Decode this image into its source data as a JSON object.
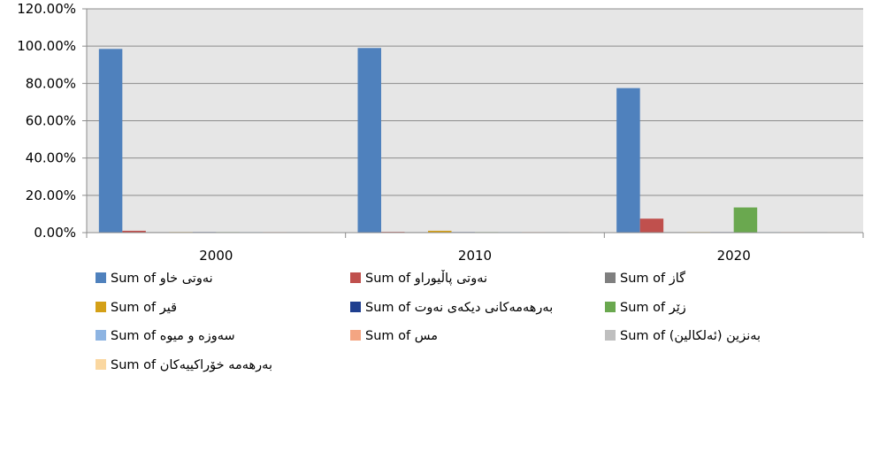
{
  "chart_data": {
    "type": "bar",
    "title": "",
    "xlabel": "",
    "ylabel": "",
    "categories": [
      "2000",
      "2010",
      "2020"
    ],
    "ylim": [
      0,
      120
    ],
    "ytick_values": [
      0,
      20,
      40,
      60,
      80,
      100,
      120
    ],
    "ytick_labels": [
      "0.00%",
      "20.00%",
      "40.00%",
      "60.00%",
      "80.00%",
      "100.00%",
      "120.00%"
    ],
    "grid": true,
    "legend_position": "bottom",
    "series": [
      {
        "name": "Sum of نەوتی خاو",
        "color": "#4F81BD",
        "values": [
          98.5,
          99.0,
          77.5
        ]
      },
      {
        "name": "Sum of نەوتی پاڵیوراو",
        "color": "#C0504D",
        "values": [
          1.0,
          0.4,
          7.5
        ]
      },
      {
        "name": "Sum of گاز",
        "color": "#7F7F7F",
        "values": [
          0.0,
          0.0,
          0.0
        ]
      },
      {
        "name": "Sum of قیر",
        "color": "#D4A017",
        "values": [
          0.3,
          1.0,
          0.3
        ]
      },
      {
        "name": "Sum of بەرهەمەکانی دیکەی نەوت",
        "color": "#1F3F8F",
        "values": [
          0.3,
          0.3,
          0.2
        ]
      },
      {
        "name": "Sum of زێر",
        "color": "#6AA84F",
        "values": [
          0.0,
          0.0,
          13.5
        ]
      },
      {
        "name": "Sum of سەوزە و میوە",
        "color": "#8DB4E2",
        "values": [
          0.0,
          0.0,
          0.1
        ]
      },
      {
        "name": "Sum of مس",
        "color": "#F4A582",
        "values": [
          0.0,
          0.0,
          0.1
        ]
      },
      {
        "name": "Sum of بەنزین (ئەلکالین)",
        "color": "#BFBFBF",
        "values": [
          0.0,
          0.0,
          0.1
        ]
      },
      {
        "name": "Sum of بەرهەمە خۆراکییەکان",
        "color": "#FAD7A0",
        "values": [
          0.0,
          0.0,
          0.1
        ]
      }
    ]
  }
}
